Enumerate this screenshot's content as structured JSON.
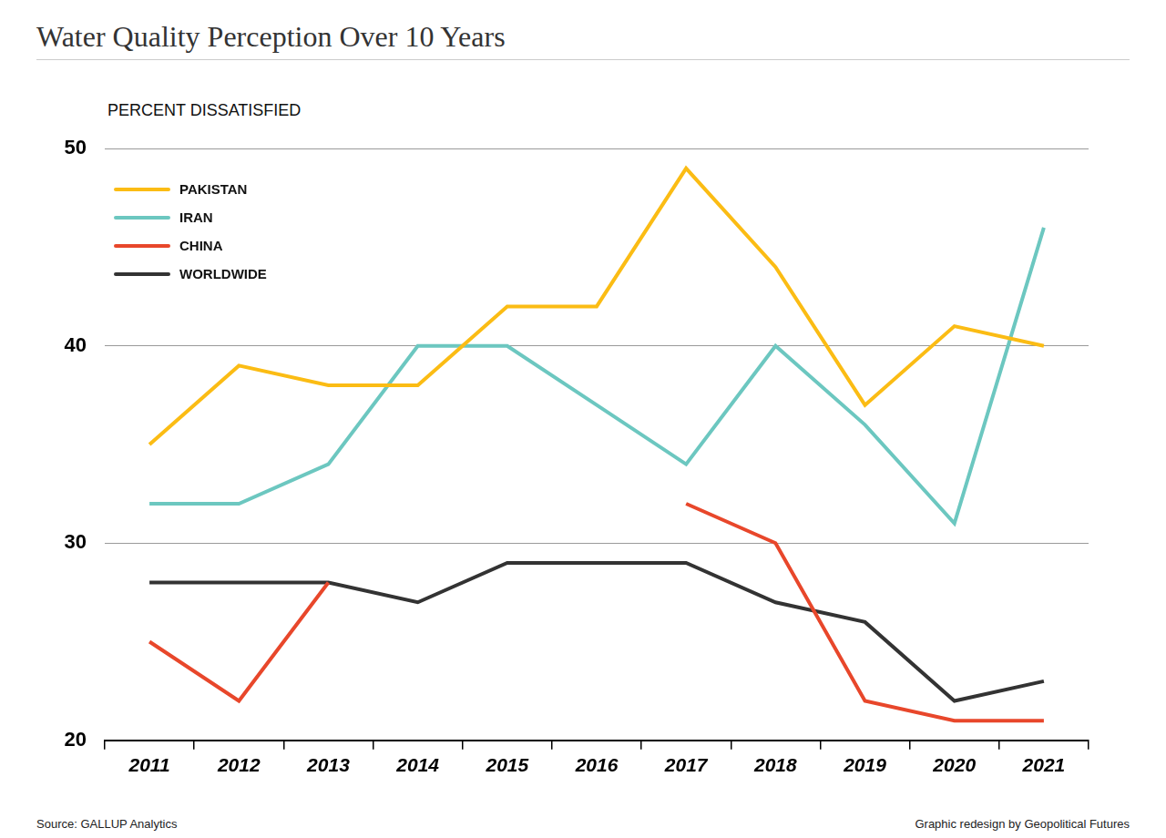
{
  "chart_data": {
    "type": "line",
    "title": "Water Quality Perception Over 10 Years",
    "y_label": "PERCENT DISSATISFIED",
    "source": "Source: GALLUP Analytics",
    "credit": "Graphic redesign by Geopolitical Futures",
    "categories": [
      "2011",
      "2012",
      "2013",
      "2014",
      "2015",
      "2016",
      "2017",
      "2018",
      "2019",
      "2020",
      "2021"
    ],
    "series": [
      {
        "name": "PAKISTAN",
        "color": "#fbbc14",
        "values": [
          35,
          39,
          38,
          38,
          42,
          42,
          49,
          44,
          37,
          41,
          40
        ]
      },
      {
        "name": "IRAN",
        "color": "#6cc7c0",
        "values": [
          32,
          32,
          34,
          40,
          40,
          37,
          34,
          40,
          36,
          31,
          46
        ]
      },
      {
        "name": "CHINA",
        "color": "#e8472b",
        "values": [
          25,
          22,
          28,
          null,
          null,
          null,
          32,
          30,
          22,
          21,
          21
        ]
      },
      {
        "name": "WORLDWIDE",
        "color": "#333333",
        "values": [
          28,
          28,
          28,
          27,
          29,
          29,
          29,
          27,
          26,
          22,
          23
        ]
      }
    ],
    "ylim": [
      20,
      50
    ],
    "yticks": [
      20,
      30,
      40,
      50
    ],
    "grid": true,
    "legend": "upper left"
  }
}
